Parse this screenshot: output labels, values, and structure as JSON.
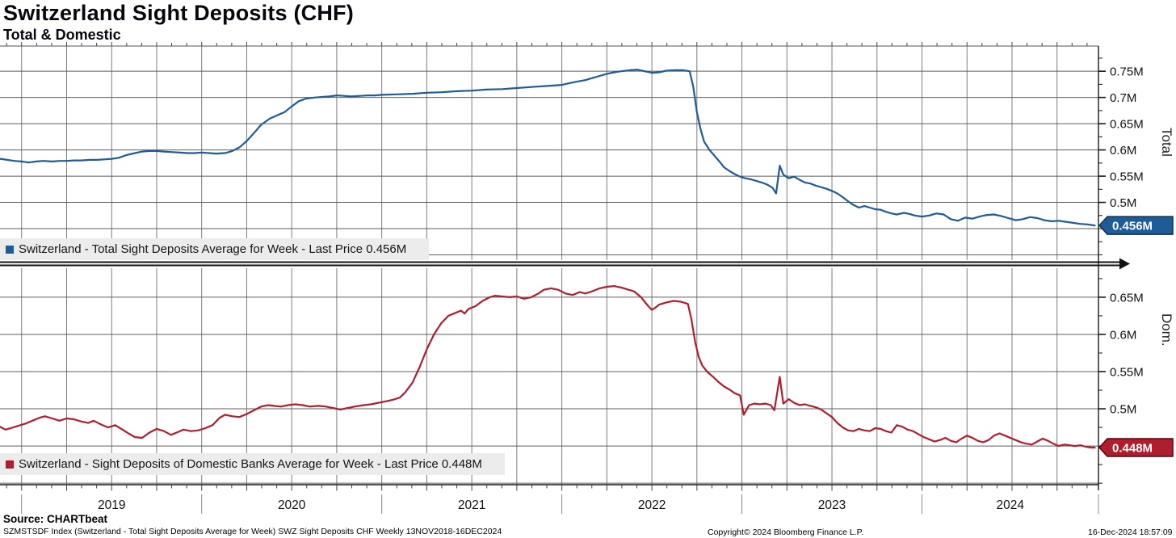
{
  "header": {
    "title": "Switzerland Sight Deposits (CHF)",
    "subtitle": "Total & Domestic"
  },
  "footer": {
    "source_label": "Source: CHARTbeat",
    "ticker_line": "SZMSTSDF Index (Switzerland - Total Sight Deposits Average for Week) SWZ Sight Deposits CHF  Weekly 13NOV2018-16DEC2024",
    "copyright": "Copyright© 2024 Bloomberg Finance L.P.",
    "timestamp": "16-Dec-2024 18:57:09"
  },
  "colors": {
    "total_line": "#1e5c99",
    "domestic_line": "#b01e2e",
    "grid_vertical": "#7d7d7d",
    "grid_horizontal": "#5f5f5f",
    "axis": "#1a1a1a",
    "year_separator": "#888888",
    "legend_background": "#ececec",
    "badge_text": "#ffffff"
  },
  "x_axis": {
    "start": 2018.88,
    "end": 2024.98,
    "year_labels": [
      "2019",
      "2020",
      "2021",
      "2022",
      "2023",
      "2024"
    ],
    "year_boundaries": [
      2019,
      2020,
      2021,
      2022,
      2023,
      2024,
      2025
    ]
  },
  "chart_data": [
    {
      "type": "line",
      "name": "Total",
      "axis_title": "Total",
      "legend": "Switzerland - Total Sight Deposits Average for Week - Last Price 0.456M",
      "last_price": 0.456,
      "last_price_label": "0.456M",
      "color": "#1e5c99",
      "badge_border": "#10304e",
      "ylim": [
        0.39,
        0.798
      ],
      "y_ticks": [
        0.5,
        0.55,
        0.6,
        0.65,
        0.7,
        0.75
      ],
      "y_tick_labels": [
        "0.5M",
        "0.55M",
        "0.6M",
        "0.65M",
        "0.7M",
        "0.75M"
      ],
      "x": [
        2018.88,
        2018.92,
        2018.96,
        2019.0,
        2019.04,
        2019.08,
        2019.12,
        2019.17,
        2019.21,
        2019.25,
        2019.29,
        2019.33,
        2019.38,
        2019.42,
        2019.46,
        2019.5,
        2019.54,
        2019.58,
        2019.63,
        2019.67,
        2019.71,
        2019.75,
        2019.79,
        2019.83,
        2019.88,
        2019.92,
        2019.96,
        2020.0,
        2020.04,
        2020.08,
        2020.13,
        2020.17,
        2020.21,
        2020.25,
        2020.29,
        2020.33,
        2020.38,
        2020.42,
        2020.46,
        2020.5,
        2020.54,
        2020.58,
        2020.63,
        2020.67,
        2020.71,
        2020.75,
        2020.79,
        2020.83,
        2020.88,
        2020.92,
        2020.96,
        2021.0,
        2021.08,
        2021.17,
        2021.25,
        2021.33,
        2021.42,
        2021.5,
        2021.58,
        2021.67,
        2021.75,
        2021.83,
        2021.92,
        2022.0,
        2022.04,
        2022.08,
        2022.13,
        2022.17,
        2022.21,
        2022.25,
        2022.29,
        2022.33,
        2022.38,
        2022.42,
        2022.46,
        2022.5,
        2022.54,
        2022.58,
        2022.63,
        2022.67,
        2022.71,
        2022.73,
        2022.75,
        2022.77,
        2022.79,
        2022.82,
        2022.85,
        2022.88,
        2022.9,
        2022.93,
        2022.96,
        2022.99,
        2023.02,
        2023.05,
        2023.08,
        2023.11,
        2023.14,
        2023.17,
        2023.19,
        2023.21,
        2023.23,
        2023.26,
        2023.29,
        2023.32,
        2023.35,
        2023.38,
        2023.41,
        2023.44,
        2023.47,
        2023.5,
        2023.53,
        2023.56,
        2023.59,
        2023.62,
        2023.65,
        2023.68,
        2023.71,
        2023.74,
        2023.77,
        2023.8,
        2023.83,
        2023.86,
        2023.9,
        2023.93,
        2023.96,
        2024.0,
        2024.04,
        2024.08,
        2024.12,
        2024.16,
        2024.2,
        2024.24,
        2024.28,
        2024.32,
        2024.36,
        2024.4,
        2024.44,
        2024.48,
        2024.52,
        2024.56,
        2024.6,
        2024.64,
        2024.68,
        2024.72,
        2024.76,
        2024.8,
        2024.84,
        2024.88,
        2024.92,
        2024.96
      ],
      "values": [
        0.583,
        0.581,
        0.579,
        0.578,
        0.576,
        0.578,
        0.579,
        0.578,
        0.579,
        0.579,
        0.58,
        0.58,
        0.581,
        0.581,
        0.582,
        0.583,
        0.585,
        0.59,
        0.594,
        0.597,
        0.598,
        0.598,
        0.597,
        0.596,
        0.595,
        0.594,
        0.594,
        0.595,
        0.594,
        0.593,
        0.594,
        0.598,
        0.605,
        0.617,
        0.632,
        0.648,
        0.66,
        0.666,
        0.672,
        0.683,
        0.693,
        0.698,
        0.7,
        0.701,
        0.702,
        0.704,
        0.703,
        0.702,
        0.703,
        0.704,
        0.704,
        0.705,
        0.706,
        0.707,
        0.709,
        0.71,
        0.712,
        0.713,
        0.715,
        0.716,
        0.718,
        0.72,
        0.722,
        0.724,
        0.727,
        0.73,
        0.733,
        0.737,
        0.741,
        0.745,
        0.748,
        0.75,
        0.752,
        0.753,
        0.75,
        0.747,
        0.748,
        0.751,
        0.752,
        0.752,
        0.75,
        0.72,
        0.672,
        0.64,
        0.616,
        0.6,
        0.588,
        0.576,
        0.567,
        0.56,
        0.554,
        0.549,
        0.546,
        0.544,
        0.541,
        0.538,
        0.534,
        0.528,
        0.517,
        0.57,
        0.553,
        0.546,
        0.549,
        0.543,
        0.538,
        0.536,
        0.532,
        0.529,
        0.526,
        0.522,
        0.517,
        0.51,
        0.502,
        0.495,
        0.49,
        0.493,
        0.49,
        0.487,
        0.486,
        0.482,
        0.479,
        0.477,
        0.48,
        0.478,
        0.475,
        0.473,
        0.475,
        0.479,
        0.477,
        0.468,
        0.465,
        0.471,
        0.469,
        0.473,
        0.476,
        0.477,
        0.474,
        0.47,
        0.466,
        0.468,
        0.472,
        0.47,
        0.466,
        0.464,
        0.465,
        0.463,
        0.461,
        0.459,
        0.458,
        0.456
      ]
    },
    {
      "type": "line",
      "name": "Domestic",
      "axis_title": "Dom.",
      "legend": "Switzerland - Sight Deposits of Domestic Banks Average for Week - Last Price 0.448M",
      "last_price": 0.448,
      "last_price_label": "0.448M",
      "color": "#b01e2e",
      "badge_border": "#4d0a12",
      "ylim": [
        0.398,
        0.689
      ],
      "y_ticks": [
        0.5,
        0.55,
        0.6,
        0.65
      ],
      "y_tick_labels": [
        "0.5M",
        "0.55M",
        "0.6M",
        "0.65M"
      ],
      "x": [
        2018.88,
        2018.91,
        2018.94,
        2018.98,
        2019.02,
        2019.06,
        2019.1,
        2019.13,
        2019.17,
        2019.21,
        2019.25,
        2019.29,
        2019.33,
        2019.37,
        2019.4,
        2019.44,
        2019.48,
        2019.52,
        2019.56,
        2019.6,
        2019.63,
        2019.67,
        2019.71,
        2019.75,
        2019.79,
        2019.83,
        2019.87,
        2019.9,
        2019.94,
        2019.98,
        2020.02,
        2020.06,
        2020.1,
        2020.13,
        2020.17,
        2020.21,
        2020.25,
        2020.29,
        2020.33,
        2020.37,
        2020.4,
        2020.44,
        2020.48,
        2020.52,
        2020.56,
        2020.6,
        2020.65,
        2020.69,
        2020.73,
        2020.77,
        2020.81,
        2020.85,
        2020.9,
        2020.94,
        2020.98,
        2021.02,
        2021.06,
        2021.1,
        2021.13,
        2021.17,
        2021.21,
        2021.25,
        2021.29,
        2021.33,
        2021.37,
        2021.4,
        2021.44,
        2021.46,
        2021.48,
        2021.52,
        2021.56,
        2021.6,
        2021.63,
        2021.67,
        2021.71,
        2021.75,
        2021.79,
        2021.83,
        2021.87,
        2021.9,
        2021.94,
        2021.98,
        2022.02,
        2022.06,
        2022.1,
        2022.13,
        2022.17,
        2022.21,
        2022.25,
        2022.29,
        2022.33,
        2022.37,
        2022.4,
        2022.44,
        2022.48,
        2022.5,
        2022.52,
        2022.54,
        2022.58,
        2022.62,
        2022.66,
        2022.7,
        2022.72,
        2022.74,
        2022.76,
        2022.78,
        2022.81,
        2022.84,
        2022.87,
        2022.9,
        2022.93,
        2022.96,
        2022.99,
        2023.01,
        2023.04,
        2023.07,
        2023.1,
        2023.13,
        2023.16,
        2023.18,
        2023.21,
        2023.23,
        2023.26,
        2023.29,
        2023.32,
        2023.35,
        2023.38,
        2023.41,
        2023.44,
        2023.47,
        2023.5,
        2023.53,
        2023.56,
        2023.59,
        2023.62,
        2023.65,
        2023.68,
        2023.71,
        2023.74,
        2023.77,
        2023.8,
        2023.83,
        2023.86,
        2023.89,
        2023.92,
        2023.95,
        2023.98,
        2024.01,
        2024.04,
        2024.07,
        2024.1,
        2024.13,
        2024.16,
        2024.19,
        2024.22,
        2024.25,
        2024.28,
        2024.31,
        2024.34,
        2024.37,
        2024.4,
        2024.43,
        2024.46,
        2024.49,
        2024.52,
        2024.55,
        2024.58,
        2024.61,
        2024.64,
        2024.67,
        2024.7,
        2024.73,
        2024.76,
        2024.79,
        2024.82,
        2024.85,
        2024.88,
        2024.91,
        2024.94,
        2024.96
      ],
      "values": [
        0.476,
        0.472,
        0.474,
        0.477,
        0.48,
        0.484,
        0.488,
        0.49,
        0.487,
        0.484,
        0.487,
        0.486,
        0.483,
        0.481,
        0.484,
        0.479,
        0.475,
        0.478,
        0.472,
        0.466,
        0.462,
        0.461,
        0.468,
        0.473,
        0.47,
        0.465,
        0.469,
        0.472,
        0.47,
        0.471,
        0.474,
        0.478,
        0.488,
        0.492,
        0.49,
        0.489,
        0.493,
        0.498,
        0.503,
        0.505,
        0.504,
        0.503,
        0.505,
        0.506,
        0.505,
        0.503,
        0.504,
        0.503,
        0.501,
        0.499,
        0.501,
        0.503,
        0.505,
        0.506,
        0.508,
        0.51,
        0.512,
        0.515,
        0.522,
        0.535,
        0.556,
        0.58,
        0.6,
        0.615,
        0.625,
        0.628,
        0.632,
        0.628,
        0.634,
        0.638,
        0.645,
        0.65,
        0.652,
        0.651,
        0.65,
        0.651,
        0.648,
        0.65,
        0.655,
        0.66,
        0.662,
        0.66,
        0.655,
        0.653,
        0.657,
        0.655,
        0.658,
        0.662,
        0.664,
        0.665,
        0.663,
        0.66,
        0.658,
        0.65,
        0.638,
        0.633,
        0.636,
        0.64,
        0.643,
        0.645,
        0.644,
        0.641,
        0.62,
        0.59,
        0.57,
        0.558,
        0.549,
        0.543,
        0.536,
        0.53,
        0.526,
        0.521,
        0.518,
        0.492,
        0.505,
        0.507,
        0.506,
        0.507,
        0.505,
        0.498,
        0.543,
        0.507,
        0.513,
        0.508,
        0.505,
        0.506,
        0.504,
        0.502,
        0.499,
        0.494,
        0.489,
        0.481,
        0.475,
        0.471,
        0.47,
        0.473,
        0.471,
        0.47,
        0.474,
        0.473,
        0.47,
        0.468,
        0.478,
        0.476,
        0.472,
        0.47,
        0.466,
        0.462,
        0.459,
        0.456,
        0.458,
        0.461,
        0.457,
        0.455,
        0.46,
        0.464,
        0.461,
        0.457,
        0.455,
        0.458,
        0.464,
        0.467,
        0.464,
        0.461,
        0.458,
        0.455,
        0.453,
        0.452,
        0.456,
        0.46,
        0.457,
        0.453,
        0.45,
        0.452,
        0.451,
        0.45,
        0.451,
        0.449,
        0.448,
        0.448
      ]
    }
  ]
}
